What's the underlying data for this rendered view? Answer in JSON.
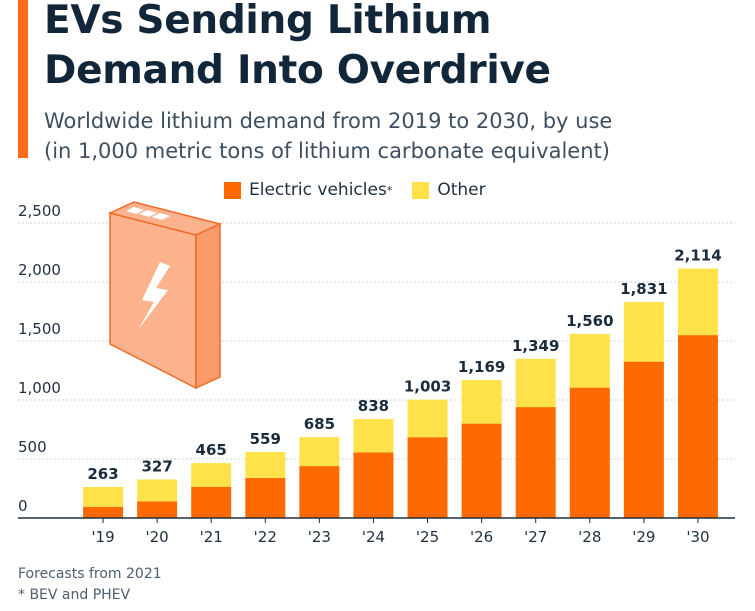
{
  "title_line1": "EVs Sending Lithium",
  "title_line2": "Demand Into Overdrive",
  "subtitle_line1": "Worldwide lithium demand from 2019 to 2030, by use",
  "subtitle_line2": "(in 1,000 metric tons of lithium carbonate equivalent)",
  "legend": {
    "ev_label": "Electric vehicles",
    "ev_marker": "*",
    "other_label": "Other"
  },
  "footnotes": {
    "line1": "Forecasts from 2021",
    "line2": "* BEV and PHEV"
  },
  "colors": {
    "accent": "#fe6a16",
    "ev": "#fe6a00",
    "other": "#ffe24a",
    "grid": "#c9d3dc",
    "battery_face": "#fbb28d",
    "battery_edge": "#f06a2a",
    "bolt": "#ffffff"
  },
  "icons": {
    "battery": "battery-icon",
    "bolt": "lightning-bolt-icon"
  },
  "chart_data": {
    "type": "bar",
    "stacked": true,
    "title": "EVs Sending Lithium Demand Into Overdrive",
    "xlabel": "",
    "ylabel": "",
    "ylim": [
      0,
      2500
    ],
    "yticks": [
      0,
      500,
      1000,
      1500,
      2000,
      2500
    ],
    "ytick_labels": [
      "0",
      "500",
      "1,000",
      "1,500",
      "2,000",
      "2,500"
    ],
    "grid": true,
    "legend_position": "top",
    "categories": [
      "'19",
      "'20",
      "'21",
      "'22",
      "'23",
      "'24",
      "'25",
      "'26",
      "'27",
      "'28",
      "'29",
      "'30"
    ],
    "series": [
      {
        "name": "Electric vehicles*",
        "values": [
          95,
          140,
          265,
          340,
          440,
          555,
          685,
          800,
          940,
          1105,
          1325,
          1550
        ]
      },
      {
        "name": "Other",
        "values": [
          168,
          187,
          200,
          219,
          245,
          283,
          318,
          369,
          409,
          455,
          506,
          564
        ]
      }
    ],
    "totals": [
      263,
      327,
      465,
      559,
      685,
      838,
      1003,
      1169,
      1349,
      1560,
      1831,
      2114
    ],
    "total_labels": [
      "263",
      "327",
      "465",
      "559",
      "685",
      "838",
      "1,003",
      "1,169",
      "1,349",
      "1,560",
      "1,831",
      "2,114"
    ]
  }
}
